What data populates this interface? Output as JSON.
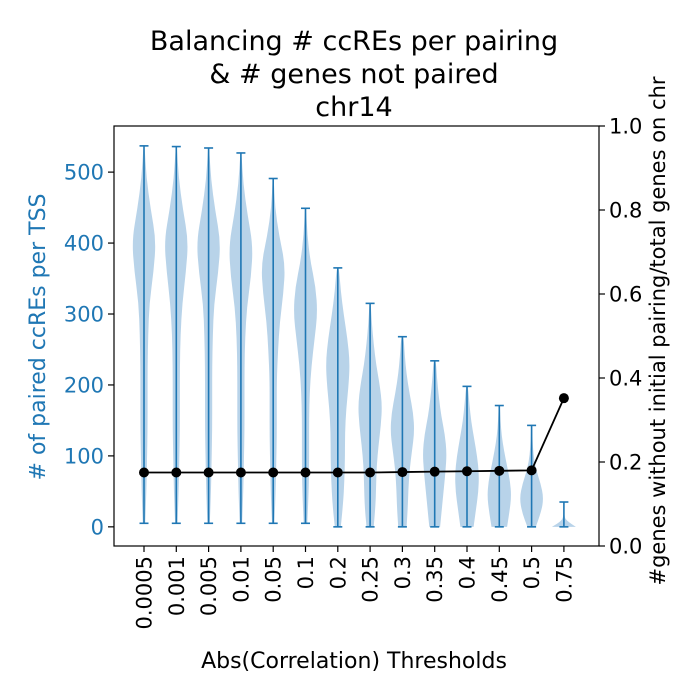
{
  "chart_data": {
    "type": "violin",
    "title_lines": [
      "Balancing # ccREs per pairing",
      "& # genes not paired",
      "chr14"
    ],
    "xlabel": "Abs(Correlation) Thresholds",
    "ylabel_left": "# of paired ccREs per TSS",
    "ylabel_right": "#genes without initial pairing/total genes on chr",
    "categories": [
      "0.0005",
      "0.001",
      "0.005",
      "0.01",
      "0.05",
      "0.1",
      "0.2",
      "0.25",
      "0.3",
      "0.35",
      "0.4",
      "0.45",
      "0.5",
      "0.75"
    ],
    "ylim_left": [
      -27,
      565
    ],
    "yticks_left": [
      0,
      100,
      200,
      300,
      400,
      500
    ],
    "ylim_right": [
      0.0,
      1.0
    ],
    "yticks_right": [
      0.0,
      0.2,
      0.4,
      0.6,
      0.8,
      1.0
    ],
    "violins": [
      {
        "min": 5,
        "max": 537,
        "widths": [
          0.1,
          0.2,
          0.25,
          0.3,
          0.3,
          0.3,
          0.35,
          0.45,
          0.8,
          1.0,
          0.55,
          0.2,
          0.05
        ]
      },
      {
        "min": 5,
        "max": 536,
        "widths": [
          0.1,
          0.2,
          0.25,
          0.3,
          0.3,
          0.3,
          0.35,
          0.5,
          0.8,
          1.0,
          0.55,
          0.2,
          0.05
        ]
      },
      {
        "min": 5,
        "max": 534,
        "widths": [
          0.1,
          0.2,
          0.25,
          0.3,
          0.3,
          0.3,
          0.35,
          0.45,
          0.8,
          1.0,
          0.55,
          0.2,
          0.05
        ]
      },
      {
        "min": 5,
        "max": 527,
        "widths": [
          0.1,
          0.2,
          0.25,
          0.3,
          0.3,
          0.3,
          0.35,
          0.5,
          0.85,
          1.0,
          0.55,
          0.2,
          0.05
        ]
      },
      {
        "min": 5,
        "max": 491,
        "widths": [
          0.1,
          0.2,
          0.25,
          0.3,
          0.3,
          0.3,
          0.4,
          0.55,
          0.85,
          1.0,
          0.5,
          0.15,
          0.05
        ]
      },
      {
        "min": 5,
        "max": 449,
        "widths": [
          0.15,
          0.25,
          0.3,
          0.3,
          0.3,
          0.35,
          0.5,
          0.75,
          1.0,
          0.85,
          0.4,
          0.15,
          0.05
        ]
      },
      {
        "min": 0,
        "max": 365,
        "widths": [
          0.25,
          0.45,
          0.55,
          0.6,
          0.6,
          0.7,
          0.9,
          1.0,
          0.8,
          0.5,
          0.25,
          0.1
        ]
      },
      {
        "min": 0,
        "max": 315,
        "widths": [
          0.3,
          0.45,
          0.5,
          0.55,
          0.7,
          0.9,
          1.0,
          0.8,
          0.5,
          0.3,
          0.15,
          0.05
        ]
      },
      {
        "min": 0,
        "max": 268,
        "widths": [
          0.35,
          0.45,
          0.5,
          0.6,
          0.8,
          1.0,
          0.9,
          0.6,
          0.35,
          0.2,
          0.1
        ]
      },
      {
        "min": 0,
        "max": 234,
        "widths": [
          0.45,
          0.6,
          0.75,
          0.9,
          1.0,
          0.85,
          0.55,
          0.35,
          0.2,
          0.1
        ]
      },
      {
        "min": 0,
        "max": 198,
        "widths": [
          0.55,
          0.75,
          0.95,
          1.0,
          0.85,
          0.6,
          0.35,
          0.2,
          0.08
        ]
      },
      {
        "min": 0,
        "max": 171,
        "widths": [
          0.65,
          0.85,
          1.0,
          0.9,
          0.65,
          0.4,
          0.2,
          0.1,
          0.05
        ]
      },
      {
        "min": 0,
        "max": 143,
        "widths": [
          0.35,
          0.8,
          1.0,
          0.75,
          0.35,
          0.15,
          0.08,
          0.05
        ]
      },
      {
        "min": 0,
        "max": 35,
        "widths": [
          1.0,
          0.15,
          0.03,
          0.02,
          0.02
        ]
      }
    ],
    "line_series": {
      "axis": "right",
      "values": [
        0.175,
        0.175,
        0.175,
        0.175,
        0.175,
        0.175,
        0.175,
        0.175,
        0.176,
        0.177,
        0.178,
        0.179,
        0.18,
        0.352
      ]
    },
    "colors": {
      "violin_fill": "#a6c8e3",
      "violin_line": "#1f77b4",
      "line": "#000000",
      "left_axis_text": "#1f77b4"
    }
  }
}
